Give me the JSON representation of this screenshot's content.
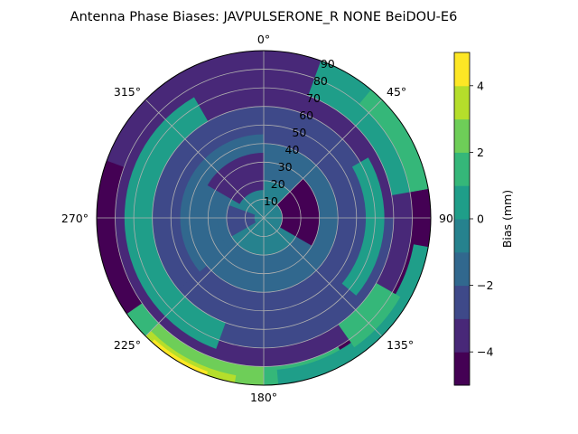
{
  "chart_data": {
    "type": "heatmap",
    "projection": "polar",
    "title": "Antenna Phase Biases: JAVPULSERONE_R  NONE BeiDOU-E6",
    "theta_zero": "N",
    "theta_direction": "clockwise",
    "theta_ticks": [
      "0°",
      "45°",
      "90",
      "135°",
      "180°",
      "225°",
      "270°",
      "315°"
    ],
    "theta_tick_degrees": [
      0,
      45,
      90,
      135,
      180,
      225,
      270,
      315
    ],
    "r_ticks": [
      10,
      20,
      30,
      40,
      50,
      60,
      70,
      80,
      90
    ],
    "r_tick_labels": [
      "10",
      "20",
      "30",
      "40",
      "50",
      "60",
      "70",
      "80",
      "90"
    ],
    "rlim": [
      0,
      90
    ],
    "grid": true,
    "colorbar": {
      "label": "Bias (mm)",
      "ticks": [
        "−4",
        "−2",
        "0",
        "2",
        "4"
      ],
      "tick_values": [
        -4,
        -2,
        0,
        2,
        4
      ],
      "range": [
        -5,
        5
      ],
      "levels": [
        -5,
        -4,
        -3,
        -2,
        -1,
        0,
        1,
        2,
        3,
        4,
        5
      ],
      "colormap": "viridis",
      "level_colors": [
        "#440154",
        "#482878",
        "#3e4989",
        "#31688e",
        "#26828e",
        "#1f9e89",
        "#35b779",
        "#6ece58",
        "#b5de2b",
        "#fde725"
      ]
    },
    "contour_regions": [
      {
        "level": 0,
        "theta": [
          0,
          360
        ],
        "r": [
          80,
          90
        ]
      },
      {
        "level": 1,
        "theta": [
          0,
          360
        ],
        "r": [
          60,
          80
        ]
      },
      {
        "level": 2,
        "theta": [
          0,
          360
        ],
        "r": [
          40,
          60
        ]
      },
      {
        "level": 3,
        "theta": [
          0,
          360
        ],
        "r": [
          20,
          40
        ]
      },
      {
        "level": 4,
        "theta": [
          0,
          360
        ],
        "r": [
          0,
          20
        ]
      },
      {
        "level": 3,
        "theta": [
          200,
          360
        ],
        "r": [
          25,
          45
        ]
      },
      {
        "level": 2,
        "theta": [
          90,
          230
        ],
        "r": [
          40,
          70
        ]
      },
      {
        "level": 1,
        "theta": [
          290,
          360
        ],
        "r": [
          72,
          90
        ]
      },
      {
        "level": 1,
        "theta": [
          0,
          30
        ],
        "r": [
          80,
          90
        ]
      },
      {
        "level": 5,
        "theta": [
          20,
          80
        ],
        "r": [
          70,
          90
        ]
      },
      {
        "level": 6,
        "theta": [
          40,
          80
        ],
        "r": [
          80,
          90
        ]
      },
      {
        "level": 5,
        "theta": [
          60,
          130
        ],
        "r": [
          55,
          65
        ]
      },
      {
        "level": 5,
        "theta": [
          200,
          330
        ],
        "r": [
          60,
          75
        ]
      },
      {
        "level": 6,
        "theta": [
          150,
          235
        ],
        "r": [
          80,
          90
        ]
      },
      {
        "level": 7,
        "theta": [
          180,
          225
        ],
        "r": [
          80,
          90
        ]
      },
      {
        "level": 8,
        "theta": [
          190,
          225
        ],
        "r": [
          86,
          90
        ]
      },
      {
        "level": 9,
        "theta": [
          200,
          222
        ],
        "r": [
          88,
          90
        ]
      },
      {
        "level": 5,
        "theta": [
          100,
          175
        ],
        "r": [
          82,
          90
        ]
      },
      {
        "level": 6,
        "theta": [
          120,
          145
        ],
        "r": [
          70,
          85
        ]
      },
      {
        "level": 0,
        "theta": [
          45,
          120
        ],
        "r": [
          10,
          30
        ]
      },
      {
        "level": 1,
        "theta": [
          300,
          360
        ],
        "r": [
          15,
          35
        ]
      },
      {
        "level": 2,
        "theta": [
          240,
          290
        ],
        "r": [
          5,
          20
        ]
      }
    ]
  }
}
